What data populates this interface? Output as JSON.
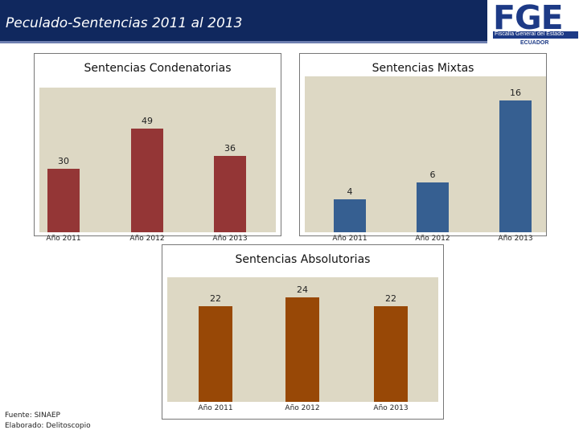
{
  "header": {
    "title": "Peculado-Sentencias 2011 al 2013"
  },
  "logo": {
    "letters": "FGE",
    "subtitle": "Fiscalía General del Estado",
    "country": "ECUADOR",
    "color": "#1d3a86"
  },
  "chart_data": [
    {
      "type": "bar",
      "title": "Sentencias Condenatorias",
      "categories": [
        "Año 2011",
        "Año 2012",
        "Año 2013"
      ],
      "values": [
        30,
        49,
        36
      ],
      "color": "#943636"
    },
    {
      "type": "bar",
      "title": "Sentencias Mixtas",
      "categories": [
        "Año 2011",
        "Año 2012",
        "Año 2013"
      ],
      "values": [
        4,
        6,
        16
      ],
      "color": "#365f91"
    },
    {
      "type": "bar",
      "title": "Sentencias Absolutorias",
      "categories": [
        "Año 2011",
        "Año 2012",
        "Año 2013"
      ],
      "values": [
        22,
        24,
        22
      ],
      "color": "#984806"
    }
  ],
  "footer": {
    "source": "Fuente: SINAEP",
    "author": "Elaborado: Delitoscopio"
  }
}
